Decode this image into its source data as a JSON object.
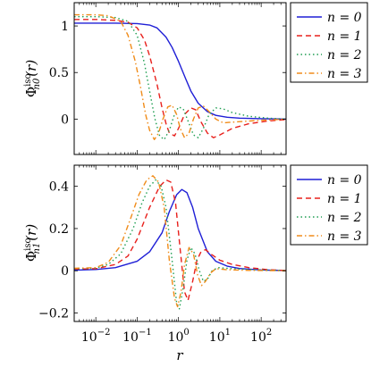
{
  "chart_data": [
    {
      "type": "line",
      "panel": "top",
      "ylabel_main": "Φ",
      "ylabel_sup": "iso",
      "ylabel_sub": "n0",
      "ylabel_arg": "(r)",
      "xscale": "log",
      "xlim": [
        0.003,
        400
      ],
      "ylim": [
        -0.38,
        1.25
      ],
      "yticks": [
        0,
        0.5,
        1
      ],
      "ytick_labels": [
        "0",
        "0.5",
        "1"
      ],
      "grid": false,
      "legend_position": "outside-right",
      "series": [
        {
          "name": "n = 0",
          "label_var": "n",
          "label_val": "0",
          "color": "#1f1fd6",
          "dash": "solid",
          "points": [
            [
              0.003,
              1.03
            ],
            [
              0.01,
              1.03
            ],
            [
              0.03,
              1.03
            ],
            [
              0.1,
              1.025
            ],
            [
              0.2,
              1.01
            ],
            [
              0.3,
              0.98
            ],
            [
              0.5,
              0.88
            ],
            [
              0.7,
              0.77
            ],
            [
              1,
              0.62
            ],
            [
              1.5,
              0.43
            ],
            [
              2,
              0.3
            ],
            [
              3,
              0.17
            ],
            [
              5,
              0.08
            ],
            [
              8,
              0.04
            ],
            [
              15,
              0.02
            ],
            [
              30,
              0.01
            ],
            [
              100,
              0.004
            ],
            [
              400,
              0.0
            ]
          ]
        },
        {
          "name": "n = 1",
          "label_var": "n",
          "label_val": "1",
          "color": "#e8201c",
          "dash": "6,4",
          "points": [
            [
              0.003,
              1.07
            ],
            [
              0.01,
              1.07
            ],
            [
              0.03,
              1.06
            ],
            [
              0.06,
              1.04
            ],
            [
              0.1,
              0.98
            ],
            [
              0.15,
              0.85
            ],
            [
              0.2,
              0.68
            ],
            [
              0.3,
              0.38
            ],
            [
              0.4,
              0.12
            ],
            [
              0.5,
              -0.05
            ],
            [
              0.6,
              -0.15
            ],
            [
              0.8,
              -0.18
            ],
            [
              1,
              -0.1
            ],
            [
              1.4,
              0.05
            ],
            [
              2,
              0.12
            ],
            [
              2.6,
              0.1
            ],
            [
              3.5,
              -0.03
            ],
            [
              5,
              -0.15
            ],
            [
              7,
              -0.2
            ],
            [
              10,
              -0.17
            ],
            [
              20,
              -0.1
            ],
            [
              50,
              -0.05
            ],
            [
              150,
              -0.02
            ],
            [
              400,
              -0.005
            ]
          ]
        },
        {
          "name": "n = 2",
          "label_var": "n",
          "label_val": "2",
          "color": "#1f9e52",
          "dash": "1.5,3",
          "points": [
            [
              0.003,
              1.1
            ],
            [
              0.01,
              1.1
            ],
            [
              0.03,
              1.09
            ],
            [
              0.06,
              1.05
            ],
            [
              0.1,
              0.9
            ],
            [
              0.15,
              0.6
            ],
            [
              0.2,
              0.3
            ],
            [
              0.27,
              0.0
            ],
            [
              0.35,
              -0.18
            ],
            [
              0.45,
              -0.22
            ],
            [
              0.6,
              -0.12
            ],
            [
              0.8,
              0.05
            ],
            [
              1,
              0.13
            ],
            [
              1.3,
              0.11
            ],
            [
              1.7,
              -0.02
            ],
            [
              2.3,
              -0.17
            ],
            [
              3,
              -0.2
            ],
            [
              4,
              -0.1
            ],
            [
              5.5,
              0.05
            ],
            [
              8,
              0.12
            ],
            [
              12,
              0.11
            ],
            [
              20,
              0.07
            ],
            [
              50,
              0.03
            ],
            [
              150,
              0.01
            ],
            [
              400,
              0.0
            ]
          ]
        },
        {
          "name": "n = 3",
          "label_var": "n",
          "label_val": "3",
          "color": "#f08c1a",
          "dash": "6,3,1.5,3",
          "points": [
            [
              0.003,
              1.12
            ],
            [
              0.01,
              1.12
            ],
            [
              0.02,
              1.11
            ],
            [
              0.04,
              1.05
            ],
            [
              0.06,
              0.9
            ],
            [
              0.09,
              0.62
            ],
            [
              0.12,
              0.35
            ],
            [
              0.16,
              0.05
            ],
            [
              0.2,
              -0.12
            ],
            [
              0.26,
              -0.22
            ],
            [
              0.33,
              -0.15
            ],
            [
              0.42,
              0.0
            ],
            [
              0.55,
              0.13
            ],
            [
              0.7,
              0.15
            ],
            [
              0.9,
              0.05
            ],
            [
              1.1,
              -0.1
            ],
            [
              1.4,
              -0.2
            ],
            [
              1.8,
              -0.15
            ],
            [
              2.3,
              0.0
            ],
            [
              3,
              0.12
            ],
            [
              4,
              0.14
            ],
            [
              5.5,
              0.08
            ],
            [
              8,
              0.0
            ],
            [
              12,
              -0.04
            ],
            [
              25,
              -0.03
            ],
            [
              80,
              -0.015
            ],
            [
              400,
              0.0
            ]
          ]
        }
      ]
    },
    {
      "type": "line",
      "panel": "bottom",
      "ylabel_main": "Φ",
      "ylabel_sup": "iso",
      "ylabel_sub": "n1",
      "ylabel_arg": "(r)",
      "xlabel": "r",
      "xscale": "log",
      "xlim": [
        0.003,
        400
      ],
      "ylim": [
        -0.24,
        0.5
      ],
      "yticks": [
        -0.2,
        0,
        0.2,
        0.4
      ],
      "ytick_labels": [
        "−0.2",
        "0",
        "0.2",
        "0.4"
      ],
      "xticks": [
        0.01,
        0.1,
        1,
        10,
        100
      ],
      "grid": false,
      "legend_position": "outside-right",
      "series": [
        {
          "name": "n = 0",
          "label_var": "n",
          "label_val": "0",
          "color": "#1f1fd6",
          "dash": "solid",
          "points": [
            [
              0.003,
              0.003
            ],
            [
              0.01,
              0.006
            ],
            [
              0.03,
              0.015
            ],
            [
              0.1,
              0.045
            ],
            [
              0.2,
              0.09
            ],
            [
              0.4,
              0.18
            ],
            [
              0.6,
              0.28
            ],
            [
              0.9,
              0.36
            ],
            [
              1.2,
              0.385
            ],
            [
              1.6,
              0.37
            ],
            [
              2.2,
              0.3
            ],
            [
              3,
              0.2
            ],
            [
              5,
              0.09
            ],
            [
              8,
              0.045
            ],
            [
              15,
              0.022
            ],
            [
              30,
              0.011
            ],
            [
              100,
              0.004
            ],
            [
              400,
              0.001
            ]
          ]
        },
        {
          "name": "n = 1",
          "label_var": "n",
          "label_val": "1",
          "color": "#e8201c",
          "dash": "6,4",
          "points": [
            [
              0.003,
              0.008
            ],
            [
              0.01,
              0.01
            ],
            [
              0.03,
              0.03
            ],
            [
              0.06,
              0.07
            ],
            [
              0.1,
              0.15
            ],
            [
              0.2,
              0.3
            ],
            [
              0.35,
              0.4
            ],
            [
              0.5,
              0.43
            ],
            [
              0.65,
              0.42
            ],
            [
              0.85,
              0.32
            ],
            [
              1.1,
              0.1
            ],
            [
              1.4,
              -0.1
            ],
            [
              1.7,
              -0.14
            ],
            [
              2.2,
              -0.05
            ],
            [
              2.8,
              0.05
            ],
            [
              3.5,
              0.09
            ],
            [
              4.5,
              0.1
            ],
            [
              6,
              0.08
            ],
            [
              10,
              0.05
            ],
            [
              20,
              0.03
            ],
            [
              50,
              0.015
            ],
            [
              150,
              0.005
            ],
            [
              400,
              0.001
            ]
          ]
        },
        {
          "name": "n = 2",
          "label_var": "n",
          "label_val": "2",
          "color": "#1f9e52",
          "dash": "1.5,3",
          "points": [
            [
              0.003,
              0.01
            ],
            [
              0.01,
              0.012
            ],
            [
              0.02,
              0.03
            ],
            [
              0.04,
              0.08
            ],
            [
              0.08,
              0.2
            ],
            [
              0.13,
              0.32
            ],
            [
              0.2,
              0.4
            ],
            [
              0.28,
              0.43
            ],
            [
              0.38,
              0.4
            ],
            [
              0.5,
              0.3
            ],
            [
              0.7,
              0.05
            ],
            [
              0.9,
              -0.15
            ],
            [
              1.05,
              -0.18
            ],
            [
              1.3,
              -0.08
            ],
            [
              1.6,
              0.05
            ],
            [
              2,
              0.11
            ],
            [
              2.5,
              0.08
            ],
            [
              3.2,
              0.0
            ],
            [
              4,
              -0.05
            ],
            [
              5,
              -0.04
            ],
            [
              6.5,
              0.0
            ],
            [
              9,
              0.015
            ],
            [
              20,
              0.01
            ],
            [
              100,
              0.004
            ],
            [
              400,
              0.001
            ]
          ]
        },
        {
          "name": "n = 3",
          "label_var": "n",
          "label_val": "3",
          "color": "#f08c1a",
          "dash": "6,3,1.5,3",
          "points": [
            [
              0.003,
              0.012
            ],
            [
              0.01,
              0.015
            ],
            [
              0.02,
              0.04
            ],
            [
              0.04,
              0.12
            ],
            [
              0.07,
              0.25
            ],
            [
              0.11,
              0.36
            ],
            [
              0.17,
              0.43
            ],
            [
              0.24,
              0.45
            ],
            [
              0.33,
              0.42
            ],
            [
              0.45,
              0.3
            ],
            [
              0.6,
              0.05
            ],
            [
              0.8,
              -0.13
            ],
            [
              0.95,
              -0.17
            ],
            [
              1.15,
              -0.1
            ],
            [
              1.4,
              0.03
            ],
            [
              1.8,
              0.11
            ],
            [
              2.3,
              0.08
            ],
            [
              2.9,
              -0.02
            ],
            [
              3.6,
              -0.07
            ],
            [
              4.5,
              -0.05
            ],
            [
              6,
              -0.01
            ],
            [
              8,
              0.01
            ],
            [
              15,
              0.005
            ],
            [
              50,
              0.002
            ],
            [
              400,
              0.0
            ]
          ]
        }
      ]
    }
  ]
}
